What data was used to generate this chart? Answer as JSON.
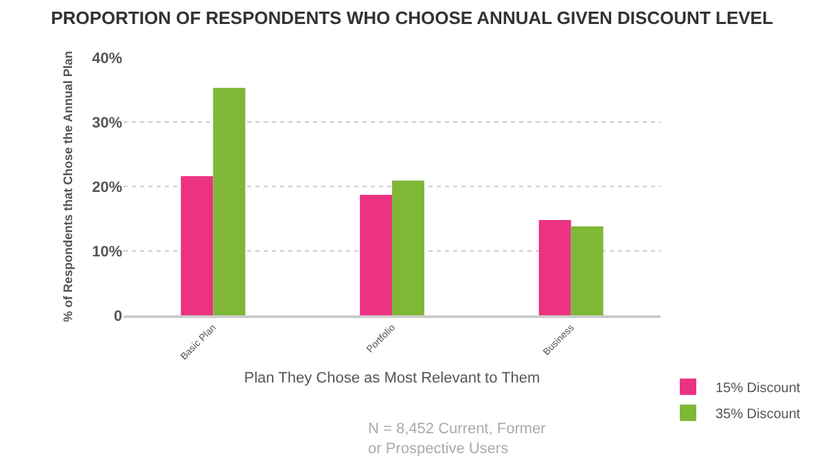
{
  "chart_data": {
    "type": "bar",
    "title": "PROPORTION OF RESPONDENTS WHO CHOOSE ANNUAL GIVEN DISCOUNT LEVEL",
    "xlabel": "Plan They Chose as Most Relevant to Them",
    "ylabel": "% of Respondents that Chose the Annual Plan",
    "categories": [
      "Basic Plan",
      "Portfolio",
      "Business"
    ],
    "series": [
      {
        "name": "15% Discount",
        "color": "#ec3282",
        "values": [
          21.6,
          18.7,
          14.8
        ]
      },
      {
        "name": "35% Discount",
        "color": "#7fb737",
        "values": [
          35.3,
          20.9,
          13.8
        ]
      }
    ],
    "ylim": [
      0,
      40
    ],
    "yticks": [
      {
        "value": 0,
        "label": "0"
      },
      {
        "value": 10,
        "label": "10%"
      },
      {
        "value": 20,
        "label": "20%"
      },
      {
        "value": 30,
        "label": "30%"
      },
      {
        "value": 40,
        "label": "40%"
      }
    ],
    "grid": "y",
    "legend": "bottom right",
    "annotations": [
      "N = 8,452 Current, Former or Prospective Users"
    ]
  }
}
